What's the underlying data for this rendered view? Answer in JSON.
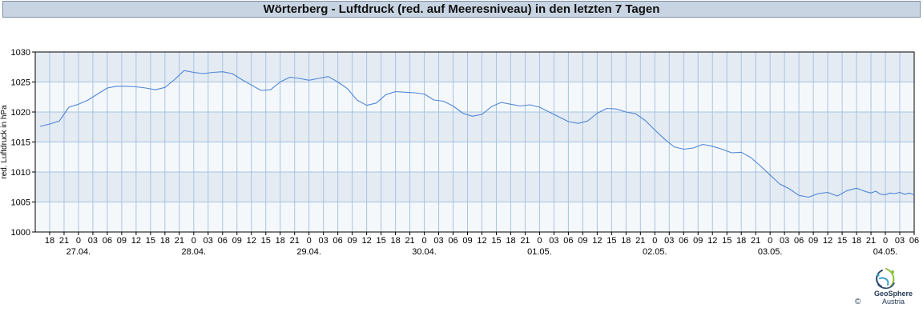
{
  "title": "Wörterberg - Luftdruck (red. auf Meeresniveau) in den letzten 7 Tagen",
  "footer": {
    "brand": "GeoSphere",
    "sub": "Austria",
    "copyright": "©"
  },
  "colors": {
    "line": "#4f86d6",
    "band_dark": "#e4ebf3",
    "band_light": "#f5f8fb",
    "grid": "#a7c4e1",
    "title_bg": "#c8d4e2"
  },
  "chart_data": {
    "type": "line",
    "title": "Wörterberg - Luftdruck (red. auf Meeresniveau) in den letzten 7 Tagen",
    "ylabel": "red. Luftdruck in hPa",
    "xlabel": "",
    "ylim": [
      1000,
      1030
    ],
    "yticks": [
      1000,
      1005,
      1010,
      1015,
      1020,
      1025,
      1030
    ],
    "xlim": [
      "26.04. 15:00",
      "04.05. 06:00"
    ],
    "x_tick_interval_hours": 3,
    "x_tick_labels": [
      "18",
      "21",
      "0",
      "03",
      "06",
      "09",
      "12",
      "15",
      "18",
      "21",
      "0",
      "03",
      "06",
      "09",
      "12",
      "15",
      "18",
      "21",
      "0",
      "03",
      "06",
      "09",
      "12",
      "15",
      "18",
      "21",
      "0",
      "03",
      "06",
      "09",
      "12",
      "15",
      "18",
      "21",
      "0",
      "03",
      "06",
      "09",
      "12",
      "15",
      "18",
      "21",
      "0",
      "03",
      "06",
      "09",
      "12",
      "15",
      "18",
      "21",
      "0",
      "03",
      "06",
      "09",
      "12",
      "15",
      "18",
      "21",
      "0",
      "03",
      "06"
    ],
    "date_labels": [
      "27.04.",
      "28.04.",
      "29.04.",
      "30.04.",
      "01.05.",
      "02.05.",
      "03.05.",
      "04.05."
    ],
    "grid": true,
    "series": [
      {
        "x": [
          "26.04. 16:00",
          "26.04. 18:00",
          "26.04. 20:00",
          "26.04. 22:00",
          "27.04. 00:00",
          "27.04. 02:00",
          "27.04. 04:00",
          "27.04. 06:00",
          "27.04. 08:00",
          "27.04. 10:00",
          "27.04. 12:00",
          "27.04. 14:00",
          "27.04. 16:00",
          "27.04. 18:00",
          "27.04. 20:00",
          "27.04. 22:00",
          "28.04. 00:00",
          "28.04. 02:00",
          "28.04. 04:00",
          "28.04. 06:00",
          "28.04. 08:00",
          "28.04. 10:00",
          "28.04. 12:00",
          "28.04. 14:00",
          "28.04. 16:00",
          "28.04. 18:00",
          "28.04. 20:00",
          "28.04. 22:00",
          "29.04. 00:00",
          "29.04. 02:00",
          "29.04. 04:00",
          "29.04. 06:00",
          "29.04. 08:00",
          "29.04. 10:00",
          "29.04. 12:00",
          "29.04. 14:00",
          "29.04. 16:00",
          "29.04. 18:00",
          "29.04. 20:00",
          "29.04. 22:00",
          "30.04. 00:00",
          "30.04. 02:00",
          "30.04. 04:00",
          "30.04. 06:00",
          "30.04. 08:00",
          "30.04. 10:00",
          "30.04. 12:00",
          "30.04. 14:00",
          "30.04. 16:00",
          "30.04. 18:00",
          "30.04. 20:00",
          "30.04. 22:00",
          "01.05. 00:00",
          "01.05. 02:00",
          "01.05. 04:00",
          "01.05. 06:00",
          "01.05. 08:00",
          "01.05. 10:00",
          "01.05. 12:00",
          "01.05. 14:00",
          "01.05. 16:00",
          "01.05. 18:00",
          "01.05. 20:00",
          "01.05. 22:00",
          "02.05. 00:00",
          "02.05. 02:00",
          "02.05. 04:00",
          "02.05. 06:00",
          "02.05. 08:00",
          "02.05. 10:00",
          "02.05. 12:00",
          "02.05. 14:00",
          "02.05. 16:00",
          "02.05. 18:00",
          "02.05. 20:00",
          "02.05. 22:00",
          "03.05. 00:00",
          "03.05. 02:00",
          "03.05. 04:00",
          "03.05. 06:00",
          "03.05. 08:00",
          "03.05. 10:00",
          "03.05. 12:00",
          "03.05. 14:00",
          "03.05. 16:00",
          "03.05. 18:00",
          "03.05. 19:00",
          "03.05. 20:00",
          "03.05. 21:00",
          "03.05. 22:00",
          "03.05. 23:00",
          "04.05. 00:00",
          "04.05. 01:00",
          "04.05. 02:00",
          "04.05. 03:00",
          "04.05. 04:00",
          "04.05. 05:00",
          "04.05. 06:00"
        ],
        "values": [
          1017.6,
          1018.0,
          1018.5,
          1020.8,
          1021.3,
          1022.0,
          1023.0,
          1024.0,
          1024.3,
          1024.3,
          1024.2,
          1024.0,
          1023.7,
          1024.1,
          1025.4,
          1026.9,
          1026.6,
          1026.4,
          1026.6,
          1026.7,
          1026.4,
          1025.4,
          1024.5,
          1023.6,
          1023.7,
          1025.0,
          1025.8,
          1025.6,
          1025.3,
          1025.6,
          1025.9,
          1025.0,
          1023.9,
          1022.0,
          1021.1,
          1021.5,
          1022.9,
          1023.4,
          1023.3,
          1023.2,
          1023.0,
          1022.0,
          1021.8,
          1021.0,
          1019.8,
          1019.3,
          1019.6,
          1020.9,
          1021.6,
          1021.3,
          1021.0,
          1021.2,
          1020.8,
          1020.0,
          1019.2,
          1018.4,
          1018.1,
          1018.5,
          1019.8,
          1020.6,
          1020.5,
          1020.0,
          1019.7,
          1018.6,
          1017.0,
          1015.5,
          1014.2,
          1013.8,
          1014.0,
          1014.6,
          1014.3,
          1013.8,
          1013.2,
          1013.3,
          1012.4,
          1011.0,
          1009.5,
          1008.0,
          1007.2,
          1006.1,
          1005.8,
          1006.4,
          1006.6,
          1006.0,
          1006.9,
          1007.3,
          1007.0,
          1006.7,
          1006.5,
          1006.8,
          1006.3,
          1006.2,
          1006.5,
          1006.4,
          1006.6,
          1006.3,
          1006.5,
          1006.2
        ]
      }
    ]
  }
}
